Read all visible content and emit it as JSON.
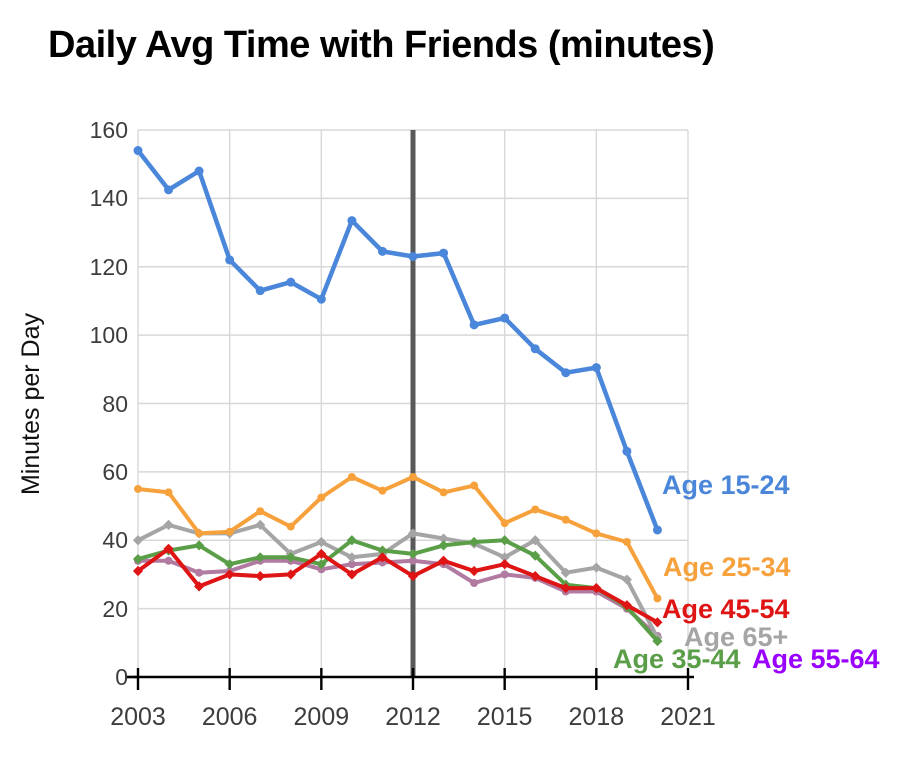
{
  "title": "Daily Avg Time with Friends (minutes)",
  "y_axis": {
    "title": "Minutes per Day",
    "ticks": [
      160,
      140,
      120,
      100,
      80,
      60,
      40,
      20,
      0
    ]
  },
  "x_axis": {
    "ticks": [
      2003,
      2006,
      2009,
      2012,
      2015,
      2018,
      2021
    ]
  },
  "chart_data": {
    "type": "line",
    "title": "Daily Avg Time with Friends (minutes)",
    "xlabel": "",
    "ylabel": "Minutes per Day",
    "xlim": [
      2003,
      2021
    ],
    "ylim": [
      0,
      160
    ],
    "grid": true,
    "legend_position": "inline-right-labels",
    "x": [
      2003,
      2004,
      2005,
      2006,
      2007,
      2008,
      2009,
      2010,
      2011,
      2012,
      2013,
      2014,
      2015,
      2016,
      2017,
      2018,
      2019,
      2020
    ],
    "series": [
      {
        "name": "Age 15-24",
        "color": "#4a86d9",
        "values": [
          154,
          142.5,
          148,
          122,
          113,
          115.5,
          110.5,
          133.5,
          124.5,
          123,
          124,
          103,
          105,
          96,
          89,
          90.5,
          66,
          43
        ]
      },
      {
        "name": "Age 25-34",
        "color": "#f6a13c",
        "values": [
          55,
          54,
          42,
          42.5,
          48.5,
          44,
          52.5,
          58.5,
          54.5,
          58.5,
          54,
          56,
          45,
          49,
          46,
          42,
          39.5,
          23
        ]
      },
      {
        "name": "Age 35-44",
        "color": "#5b9e48",
        "values": [
          34.5,
          37,
          38.5,
          33,
          35,
          35,
          33,
          40,
          37,
          36,
          38.5,
          39.5,
          40,
          35.5,
          27,
          26,
          20.5,
          10.5
        ]
      },
      {
        "name": "Age 45-54",
        "color": "#df1414",
        "values": [
          31,
          37.5,
          26.5,
          30,
          29.5,
          30,
          36,
          30,
          35,
          29.5,
          34,
          31,
          33,
          29.5,
          26,
          26,
          21,
          16
        ]
      },
      {
        "name": "Age 55-64",
        "color": "#b07aa1",
        "label_color": "#9900ff",
        "values": [
          34,
          34,
          30.5,
          31,
          34,
          34,
          31.5,
          33,
          33.5,
          34,
          33,
          27.5,
          30,
          29,
          25,
          25,
          20,
          12
        ]
      },
      {
        "name": "Age 65+",
        "color": "#a5a5a5",
        "values": [
          40,
          44.5,
          42,
          42,
          44.5,
          36,
          39.5,
          35,
          36,
          42,
          40.5,
          39,
          35,
          40,
          30.5,
          32,
          28.5,
          11.5
        ]
      }
    ],
    "annotation_line": {
      "x": 2012,
      "color": "#58595b"
    }
  }
}
